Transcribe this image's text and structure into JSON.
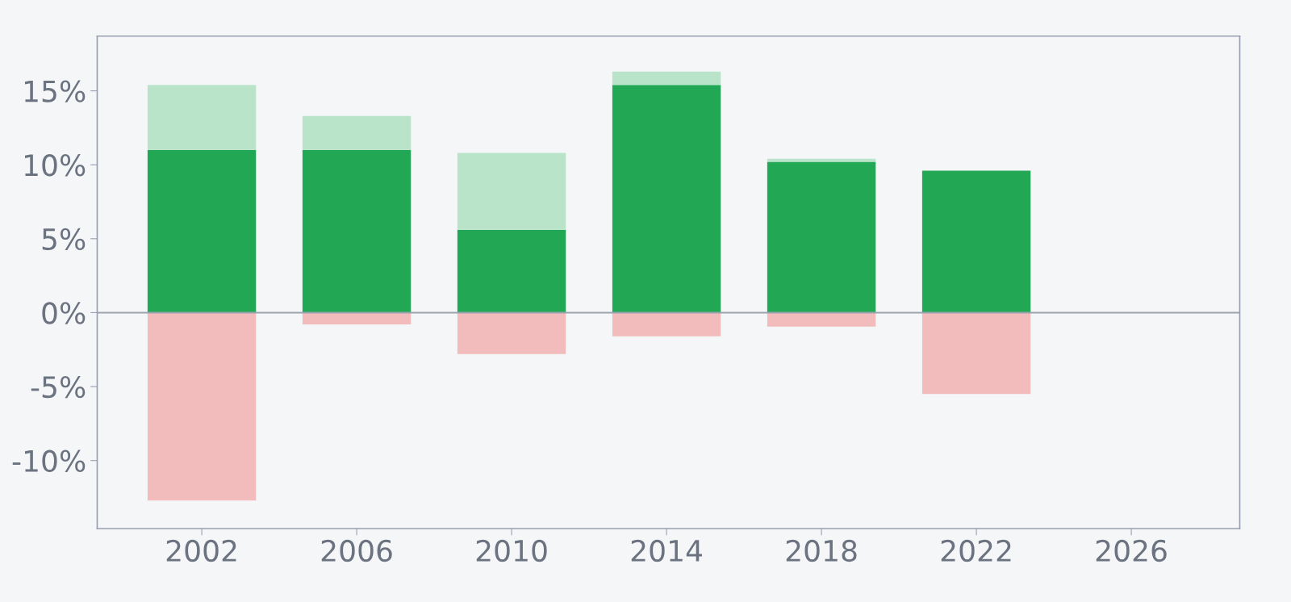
{
  "chart_data": {
    "type": "bar",
    "stacked": true,
    "x": [
      2002,
      2006,
      2010,
      2014,
      2018,
      2022
    ],
    "series": [
      {
        "color": "#22a854",
        "values": [
          11.0,
          11.0,
          5.6,
          15.4,
          10.2,
          9.6
        ]
      },
      {
        "color": "#b9e4ca",
        "values": [
          4.4,
          2.3,
          5.2,
          0.9,
          0.2,
          null
        ]
      },
      {
        "color": "#f3bcbc",
        "values": [
          -12.7,
          -0.8,
          -2.8,
          -1.6,
          -0.95,
          -5.5
        ]
      }
    ],
    "xlim": [
      1999.3,
      2028.8
    ],
    "xticks": [
      2002,
      2006,
      2010,
      2014,
      2018,
      2022,
      2026
    ],
    "ylim": [
      -14.6,
      18.7
    ],
    "yticks": [
      {
        "value": -10,
        "label": "-10%"
      },
      {
        "value": -5,
        "label": "-5%"
      },
      {
        "value": 0,
        "label": "0%"
      },
      {
        "value": 5,
        "label": "5%"
      },
      {
        "value": 10,
        "label": "10%"
      },
      {
        "value": 15,
        "label": "15%"
      }
    ],
    "ref_lines": [
      {
        "axis": "y",
        "value": 0,
        "color": "#9ca3af"
      }
    ],
    "grid": false,
    "legend": false
  }
}
